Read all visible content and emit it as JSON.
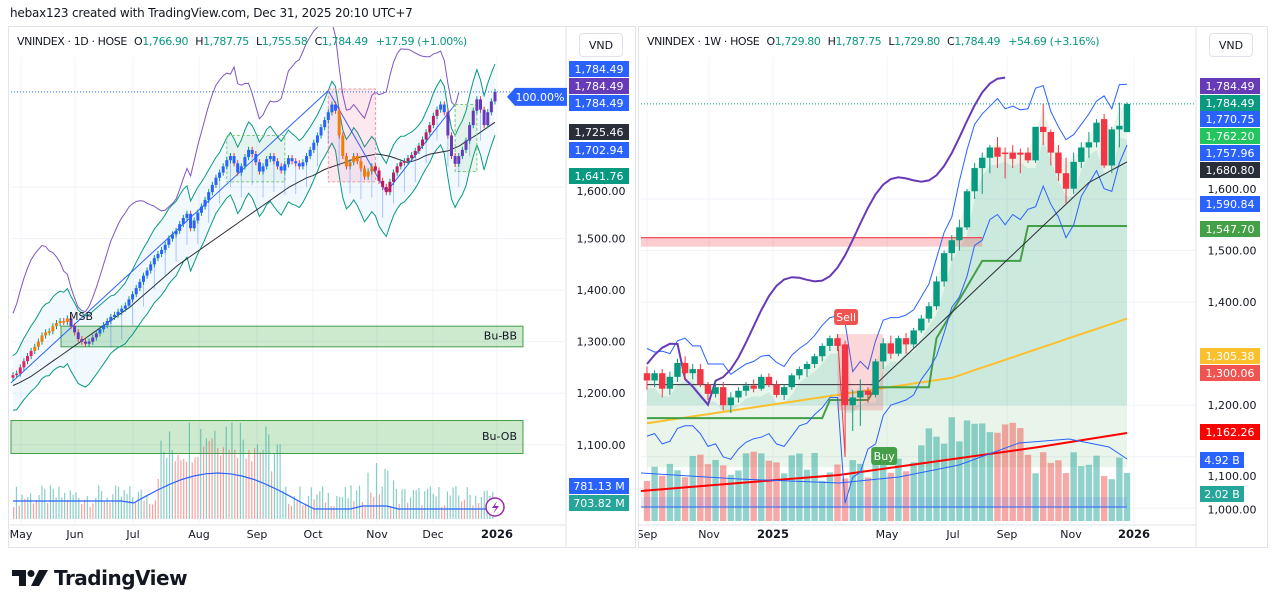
{
  "credit": "hebax123 created with TradingView.com, Dec 31, 2025 20:10 UTC+7",
  "brand": {
    "name": "TradingView",
    "icon": "tradingview-logo-icon"
  },
  "chart_data": [
    {
      "type": "candlestick",
      "symbol": "VNINDEX",
      "interval": "1D",
      "exchange": "HOSE",
      "ohlc": {
        "open_label": "O",
        "open": "1,766.90",
        "high_label": "H",
        "high": "1,787.75",
        "low_label": "L",
        "low": "1,755.58",
        "close_label": "C",
        "close": "1,784.49",
        "change": "+17.59 (+1.00%)"
      },
      "currency": "VND",
      "ylim": [
        1000,
        1850
      ],
      "y_ticks": [
        "1,600.00",
        "1,500.00",
        "1,400.00",
        "1,300.00",
        "1,200.00",
        "1,100.00"
      ],
      "y_tick_values": [
        1600,
        1500,
        1400,
        1300,
        1200,
        1100
      ],
      "x_ticks": [
        "May",
        "Jun",
        "Jul",
        "Aug",
        "Sep",
        "Oct",
        "Nov",
        "Dec",
        "2026"
      ],
      "price_tags": [
        {
          "label": "1,784.49",
          "value": 1784.49,
          "color": "#2962ff",
          "slot": 0
        },
        {
          "label": "1,784.49",
          "value": 1784.49,
          "color": "#673ab7",
          "slot": 1
        },
        {
          "label": "1,784.49",
          "value": 1784.49,
          "color": "#2962ff",
          "slot": 2
        },
        {
          "label": "1,725.46",
          "value": 1725.46,
          "color": "#2a2e39",
          "slot": 3
        },
        {
          "label": "1,702.94",
          "value": 1702.94,
          "color": "#2962ff",
          "slot": 4
        },
        {
          "label": "1,641.76",
          "value": 1641.76,
          "color": "#089981",
          "slot": 5
        }
      ],
      "volume_tags": [
        {
          "label": "781.13 M",
          "color": "#2962ff"
        },
        {
          "label": "703.82 M",
          "color": "#26a69a"
        }
      ],
      "percent_badge": "100.00%",
      "zones": [
        {
          "label": "Bu-BB",
          "low": 1290,
          "high": 1330
        },
        {
          "label": "Bu-OB",
          "low": 1083,
          "high": 1147
        }
      ],
      "annotations": [
        "MSB"
      ],
      "close_series": [
        1235,
        1238,
        1250,
        1262,
        1272,
        1282,
        1290,
        1300,
        1312,
        1318,
        1320,
        1330,
        1336,
        1340,
        1338,
        1345,
        1330,
        1318,
        1305,
        1300,
        1296,
        1300,
        1308,
        1316,
        1324,
        1332,
        1340,
        1348,
        1352,
        1358,
        1364,
        1370,
        1382,
        1392,
        1404,
        1416,
        1428,
        1438,
        1450,
        1462,
        1470,
        1478,
        1488,
        1500,
        1508,
        1515,
        1528,
        1540,
        1548,
        1520,
        1535,
        1550,
        1562,
        1575,
        1590,
        1604,
        1618,
        1628,
        1640,
        1652,
        1660,
        1646,
        1628,
        1640,
        1658,
        1672,
        1664,
        1648,
        1630,
        1640,
        1654,
        1660,
        1650,
        1640,
        1632,
        1644,
        1656,
        1650,
        1646,
        1640,
        1648,
        1660,
        1672,
        1686,
        1700,
        1716,
        1730,
        1745,
        1760,
        1748,
        1700,
        1660,
        1640,
        1648,
        1660,
        1650,
        1636,
        1620,
        1630,
        1640,
        1632,
        1612,
        1600,
        1590,
        1610,
        1628,
        1640,
        1648,
        1650,
        1656,
        1662,
        1670,
        1680,
        1692,
        1706,
        1720,
        1738,
        1750,
        1760,
        1745,
        1700,
        1660,
        1645,
        1660,
        1672,
        1690,
        1720,
        1748,
        1770,
        1750,
        1720,
        1745,
        1766,
        1784.49
      ],
      "ma_series": [
        1215,
        1220,
        1226,
        1232,
        1240,
        1248,
        1256,
        1264,
        1272,
        1280,
        1288,
        1296,
        1304,
        1312,
        1320,
        1328,
        1336,
        1344,
        1352,
        1360,
        1368,
        1378,
        1388,
        1398,
        1408,
        1418,
        1428,
        1438,
        1448,
        1456,
        1464,
        1472,
        1480,
        1488,
        1496,
        1504,
        1512,
        1520,
        1528,
        1536,
        1544,
        1552,
        1560,
        1568,
        1576,
        1584,
        1592,
        1600,
        1606,
        1612,
        1618,
        1622,
        1628,
        1634,
        1638,
        1642,
        1646,
        1650,
        1654,
        1658,
        1660,
        1662,
        1664,
        1662,
        1660,
        1656,
        1652,
        1648,
        1650,
        1654,
        1660,
        1664,
        1666,
        1668,
        1670,
        1675,
        1680,
        1688,
        1695,
        1702,
        1710,
        1718,
        1725.46
      ],
      "volume_ma_label": "781.13 M"
    },
    {
      "type": "candlestick",
      "symbol": "VNINDEX",
      "interval": "1W",
      "exchange": "HOSE",
      "ohlc": {
        "open_label": "O",
        "open": "1,729.80",
        "high_label": "H",
        "high": "1,787.75",
        "low_label": "L",
        "low": "1,729.80",
        "close_label": "C",
        "close": "1,784.49",
        "change": "+54.69 (+3.16%)"
      },
      "currency": "VND",
      "ylim": [
        990,
        1860
      ],
      "y_ticks": [
        "1,600.00",
        "1,500.00",
        "1,400.00",
        "1,200.00",
        "1,100.00",
        "1,000.00"
      ],
      "y_tick_values": [
        1600,
        1500,
        1400,
        1200,
        1100,
        1000
      ],
      "x_ticks": [
        "Sep",
        "Nov",
        "2025",
        "May",
        "Jul",
        "Sep",
        "Nov",
        "2026"
      ],
      "bold_x_ticks": [
        "2025",
        "2026"
      ],
      "price_tags": [
        {
          "label": "1,784.49",
          "color": "#673ab7"
        },
        {
          "label": "1,784.49",
          "color": "#089981"
        },
        {
          "label": "1,770.75",
          "color": "#2962ff"
        },
        {
          "label": "1,762.20",
          "color": "#22c55e",
          "text": "#131722"
        },
        {
          "label": "1,757.96",
          "color": "#2962ff"
        },
        {
          "label": "1,680.80",
          "color": "#2a2e39"
        },
        {
          "label": "1,590.84",
          "color": "#2962ff"
        },
        {
          "label": "1,547.70",
          "color": "#43a047"
        },
        {
          "label": "1,305.38",
          "color": "#fbc02d",
          "text": "#131722"
        },
        {
          "label": "1,300.06",
          "color": "#f05350"
        },
        {
          "label": "1,162.26",
          "color": "#ff0000"
        },
        {
          "label": "4.92 B",
          "color": "#2962ff"
        },
        {
          "label": "2.02 B",
          "color": "#26a69a"
        }
      ],
      "signals": [
        {
          "label": "Sell",
          "color": "#f05350"
        },
        {
          "label": "Buy",
          "color": "#43a047"
        }
      ],
      "resistance_level": 1525,
      "weekly_candles": [
        [
          1262,
          1275,
          1230,
          1248
        ],
        [
          1248,
          1268,
          1235,
          1262
        ],
        [
          1262,
          1270,
          1215,
          1232
        ],
        [
          1232,
          1265,
          1220,
          1255
        ],
        [
          1255,
          1290,
          1245,
          1282
        ],
        [
          1282,
          1295,
          1250,
          1262
        ],
        [
          1262,
          1280,
          1250,
          1270
        ],
        [
          1270,
          1280,
          1235,
          1240
        ],
        [
          1240,
          1245,
          1210,
          1222
        ],
        [
          1222,
          1245,
          1215,
          1235
        ],
        [
          1235,
          1245,
          1190,
          1200
        ],
        [
          1200,
          1225,
          1185,
          1215
        ],
        [
          1215,
          1235,
          1205,
          1228
        ],
        [
          1228,
          1245,
          1218,
          1238
        ],
        [
          1238,
          1250,
          1225,
          1232
        ],
        [
          1232,
          1260,
          1228,
          1255
        ],
        [
          1255,
          1262,
          1235,
          1240
        ],
        [
          1240,
          1248,
          1215,
          1220
        ],
        [
          1220,
          1240,
          1210,
          1235
        ],
        [
          1235,
          1262,
          1230,
          1258
        ],
        [
          1258,
          1275,
          1250,
          1270
        ],
        [
          1270,
          1285,
          1255,
          1280
        ],
        [
          1280,
          1300,
          1272,
          1295
        ],
        [
          1295,
          1320,
          1285,
          1315
        ],
        [
          1315,
          1335,
          1305,
          1330
        ],
        [
          1330,
          1338,
          1305,
          1315
        ],
        [
          1318,
          1325,
          1100,
          1200
        ],
        [
          1200,
          1230,
          1150,
          1215
        ],
        [
          1215,
          1250,
          1160,
          1228
        ],
        [
          1228,
          1235,
          1205,
          1220
        ],
        [
          1220,
          1290,
          1215,
          1285
        ],
        [
          1285,
          1330,
          1270,
          1320
        ],
        [
          1320,
          1335,
          1290,
          1300
        ],
        [
          1300,
          1335,
          1295,
          1330
        ],
        [
          1330,
          1340,
          1300,
          1318
        ],
        [
          1318,
          1350,
          1310,
          1345
        ],
        [
          1345,
          1375,
          1340,
          1368
        ],
        [
          1368,
          1400,
          1360,
          1392
        ],
        [
          1392,
          1450,
          1385,
          1440
        ],
        [
          1440,
          1500,
          1430,
          1495
        ],
        [
          1495,
          1530,
          1480,
          1520
        ],
        [
          1520,
          1560,
          1500,
          1545
        ],
        [
          1545,
          1620,
          1540,
          1615
        ],
        [
          1615,
          1670,
          1600,
          1660
        ],
        [
          1660,
          1690,
          1610,
          1680
        ],
        [
          1680,
          1705,
          1650,
          1700
        ],
        [
          1700,
          1720,
          1660,
          1682
        ],
        [
          1690,
          1700,
          1640,
          1688
        ],
        [
          1690,
          1705,
          1660,
          1678
        ],
        [
          1690,
          1698,
          1650,
          1686
        ],
        [
          1690,
          1700,
          1670,
          1675
        ],
        [
          1675,
          1740,
          1670,
          1740
        ],
        [
          1740,
          1785,
          1705,
          1730
        ],
        [
          1730,
          1735,
          1665,
          1690
        ],
        [
          1690,
          1705,
          1635,
          1650
        ],
        [
          1650,
          1680,
          1590,
          1620
        ],
        [
          1620,
          1690,
          1610,
          1672
        ],
        [
          1672,
          1710,
          1660,
          1700
        ],
        [
          1700,
          1730,
          1680,
          1710
        ],
        [
          1710,
          1755,
          1700,
          1748
        ],
        [
          1755,
          1765,
          1660,
          1665
        ],
        [
          1665,
          1740,
          1650,
          1735
        ],
        [
          1735,
          1787,
          1700,
          1742
        ],
        [
          1729.8,
          1787.75,
          1729.8,
          1784.49
        ]
      ]
    }
  ]
}
